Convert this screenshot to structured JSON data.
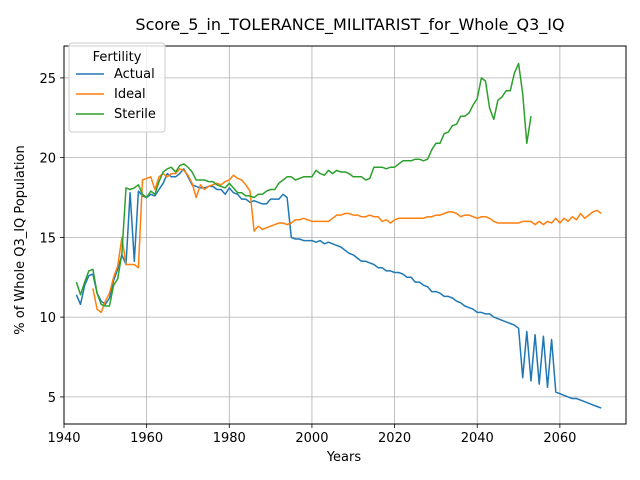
{
  "chart_data": {
    "type": "line",
    "title": "Score_5_in_TOLERANCE_MILITARIST_for_Whole_Q3_IQ",
    "xlabel": "Years",
    "ylabel": "% of Whole Q3_IQ Population",
    "xlim": [
      1940,
      2076
    ],
    "ylim": [
      3.3,
      27
    ],
    "xticks": [
      1940,
      1960,
      1980,
      2000,
      2020,
      2040,
      2060
    ],
    "yticks": [
      5,
      10,
      15,
      20,
      25
    ],
    "grid": true,
    "legend": {
      "title": "Fertility",
      "placement": "top-left"
    },
    "series": [
      {
        "name": "Actual",
        "color": "#1f77b4",
        "x": [
          1943,
          1944,
          1945,
          1946,
          1947,
          1948,
          1949,
          1950,
          1951,
          1952,
          1953,
          1954,
          1955,
          1956,
          1957,
          1958,
          1959,
          1960,
          1961,
          1962,
          1963,
          1964,
          1965,
          1966,
          1967,
          1968,
          1969,
          1970,
          1971,
          1972,
          1973,
          1974,
          1975,
          1976,
          1977,
          1978,
          1979,
          1980,
          1981,
          1982,
          1983,
          1984,
          1985,
          1986,
          1987,
          1988,
          1989,
          1990,
          1991,
          1992,
          1993,
          1994,
          1995,
          1996,
          1997,
          1998,
          1999,
          2000,
          2001,
          2002,
          2003,
          2004,
          2005,
          2006,
          2007,
          2008,
          2009,
          2010,
          2011,
          2012,
          2013,
          2014,
          2015,
          2016,
          2017,
          2018,
          2019,
          2020,
          2021,
          2022,
          2023,
          2024,
          2025,
          2026,
          2027,
          2028,
          2029,
          2030,
          2031,
          2032,
          2033,
          2034,
          2035,
          2036,
          2037,
          2038,
          2039,
          2040,
          2041,
          2042,
          2043,
          2044,
          2045,
          2046,
          2047,
          2048,
          2049,
          2050,
          2051,
          2052,
          2053,
          2054,
          2055,
          2056,
          2057,
          2058,
          2059,
          2060,
          2061,
          2062,
          2063,
          2064,
          2065,
          2066,
          2067,
          2068,
          2069,
          2070
        ],
        "y": [
          11.4,
          10.8,
          12.0,
          12.6,
          12.7,
          11.5,
          11.0,
          10.8,
          11.2,
          12.3,
          13.0,
          13.9,
          13.3,
          17.8,
          13.5,
          17.9,
          17.6,
          17.5,
          17.7,
          17.6,
          18.0,
          18.4,
          19.0,
          18.8,
          18.8,
          19.0,
          19.3,
          18.8,
          18.3,
          18.2,
          18.1,
          18.1,
          18.2,
          18.2,
          18.0,
          18.0,
          17.7,
          18.1,
          17.8,
          17.7,
          17.4,
          17.4,
          17.2,
          17.3,
          17.2,
          17.1,
          17.1,
          17.4,
          17.4,
          17.4,
          17.7,
          17.5,
          15.0,
          14.9,
          14.9,
          14.8,
          14.8,
          14.8,
          14.7,
          14.8,
          14.6,
          14.7,
          14.6,
          14.5,
          14.4,
          14.2,
          14.0,
          13.9,
          13.7,
          13.5,
          13.5,
          13.4,
          13.3,
          13.1,
          13.1,
          12.9,
          12.9,
          12.8,
          12.8,
          12.7,
          12.5,
          12.5,
          12.2,
          12.2,
          12.0,
          11.9,
          11.6,
          11.6,
          11.5,
          11.3,
          11.3,
          11.2,
          11.0,
          10.9,
          10.7,
          10.6,
          10.5,
          10.3,
          10.3,
          10.2,
          10.2,
          10.0,
          9.9,
          9.8,
          9.7,
          9.6,
          9.5,
          9.3,
          6.2,
          9.1,
          6.0,
          8.9,
          5.8,
          8.8,
          5.6,
          8.6,
          5.3,
          5.2,
          5.1,
          5.0,
          4.9,
          4.9,
          4.8,
          4.7,
          4.6,
          4.5,
          4.4,
          4.3
        ]
      },
      {
        "name": "Ideal",
        "color": "#ff7f0e",
        "x": [
          1947,
          1948,
          1949,
          1950,
          1951,
          1952,
          1953,
          1954,
          1955,
          1956,
          1957,
          1958,
          1959,
          1960,
          1961,
          1962,
          1963,
          1964,
          1965,
          1966,
          1967,
          1968,
          1969,
          1970,
          1971,
          1972,
          1973,
          1974,
          1975,
          1976,
          1977,
          1978,
          1979,
          1980,
          1981,
          1982,
          1983,
          1984,
          1985,
          1986,
          1987,
          1988,
          1989,
          1990,
          1991,
          1992,
          1993,
          1994,
          1995,
          1996,
          1997,
          1998,
          1999,
          2000,
          2001,
          2002,
          2003,
          2004,
          2005,
          2006,
          2007,
          2008,
          2009,
          2010,
          2011,
          2012,
          2013,
          2014,
          2015,
          2016,
          2017,
          2018,
          2019,
          2020,
          2021,
          2022,
          2023,
          2024,
          2025,
          2026,
          2027,
          2028,
          2029,
          2030,
          2031,
          2032,
          2033,
          2034,
          2035,
          2036,
          2037,
          2038,
          2039,
          2040,
          2041,
          2042,
          2043,
          2044,
          2045,
          2046,
          2047,
          2048,
          2049,
          2050,
          2051,
          2052,
          2053,
          2054,
          2055,
          2056,
          2057,
          2058,
          2059,
          2060,
          2061,
          2062,
          2063,
          2064,
          2065,
          2066,
          2067,
          2068,
          2069,
          2070
        ],
        "y": [
          11.8,
          10.5,
          10.3,
          11.0,
          11.5,
          12.5,
          13.2,
          15.0,
          13.3,
          13.3,
          13.3,
          13.1,
          18.6,
          18.7,
          18.8,
          18.0,
          18.8,
          19.0,
          18.8,
          19.0,
          19.0,
          19.3,
          19.2,
          18.9,
          18.4,
          17.5,
          18.3,
          18.0,
          18.2,
          18.3,
          18.4,
          18.3,
          18.5,
          18.6,
          18.9,
          18.7,
          18.6,
          18.3,
          17.9,
          15.4,
          15.7,
          15.5,
          15.6,
          15.7,
          15.8,
          15.9,
          15.9,
          15.8,
          15.9,
          16.1,
          16.1,
          16.2,
          16.1,
          16.0,
          16.0,
          16.0,
          16.0,
          16.0,
          16.2,
          16.4,
          16.4,
          16.5,
          16.5,
          16.4,
          16.4,
          16.3,
          16.3,
          16.4,
          16.3,
          16.3,
          16.0,
          16.1,
          15.9,
          16.1,
          16.2,
          16.2,
          16.2,
          16.2,
          16.2,
          16.2,
          16.2,
          16.3,
          16.3,
          16.4,
          16.4,
          16.5,
          16.6,
          16.6,
          16.5,
          16.3,
          16.4,
          16.4,
          16.3,
          16.2,
          16.3,
          16.3,
          16.2,
          16.0,
          15.9,
          15.9,
          15.9,
          15.9,
          15.9,
          15.9,
          16.0,
          16.0,
          16.0,
          15.8,
          16.0,
          15.8,
          16.0,
          15.9,
          16.2,
          15.9,
          16.2,
          16.0,
          16.3,
          16.1,
          16.5,
          16.2,
          16.4,
          16.6,
          16.7,
          16.5
        ]
      },
      {
        "name": "Sterile",
        "color": "#2ca02c",
        "x": [
          1943,
          1944,
          1945,
          1946,
          1947,
          1948,
          1949,
          1950,
          1951,
          1952,
          1953,
          1954,
          1955,
          1956,
          1957,
          1958,
          1959,
          1960,
          1961,
          1962,
          1963,
          1964,
          1965,
          1966,
          1967,
          1968,
          1969,
          1970,
          1971,
          1972,
          1973,
          1974,
          1975,
          1976,
          1977,
          1978,
          1979,
          1980,
          1981,
          1982,
          1983,
          1984,
          1985,
          1986,
          1987,
          1988,
          1989,
          1990,
          1991,
          1992,
          1993,
          1994,
          1995,
          1996,
          1997,
          1998,
          1999,
          2000,
          2001,
          2002,
          2003,
          2004,
          2005,
          2006,
          2007,
          2008,
          2009,
          2010,
          2011,
          2012,
          2013,
          2014,
          2015,
          2016,
          2017,
          2018,
          2019,
          2020,
          2021,
          2022,
          2023,
          2024,
          2025,
          2026,
          2027,
          2028,
          2029,
          2030,
          2031,
          2032,
          2033,
          2034,
          2035,
          2036,
          2037,
          2038,
          2039,
          2040,
          2041,
          2042,
          2043,
          2044,
          2045,
          2046,
          2047,
          2048,
          2049,
          2050,
          2051,
          2052,
          2053,
          2054
        ],
        "y": [
          12.2,
          11.4,
          12.2,
          12.9,
          13.0,
          11.5,
          10.8,
          10.7,
          10.7,
          12.0,
          12.4,
          14.0,
          18.1,
          18.0,
          18.1,
          18.3,
          17.7,
          17.5,
          17.9,
          17.7,
          18.5,
          19.1,
          19.3,
          19.4,
          19.1,
          19.5,
          19.6,
          19.4,
          19.1,
          18.6,
          18.6,
          18.6,
          18.5,
          18.5,
          18.3,
          18.2,
          18.1,
          18.4,
          18.1,
          17.8,
          17.8,
          17.6,
          17.6,
          17.5,
          17.7,
          17.7,
          17.9,
          18.0,
          18.0,
          18.4,
          18.6,
          18.8,
          18.8,
          18.6,
          18.7,
          18.8,
          18.8,
          18.8,
          19.2,
          19.0,
          18.9,
          19.2,
          19.0,
          19.2,
          19.1,
          19.1,
          19.0,
          18.8,
          18.8,
          18.8,
          18.6,
          18.7,
          19.4,
          19.4,
          19.4,
          19.3,
          19.4,
          19.4,
          19.6,
          19.8,
          19.8,
          19.8,
          19.9,
          19.9,
          19.8,
          19.9,
          20.5,
          20.9,
          20.9,
          21.5,
          21.6,
          22.0,
          22.1,
          22.6,
          22.6,
          22.8,
          23.3,
          23.7,
          25.0,
          24.8,
          23.1,
          22.4,
          23.6,
          23.8,
          24.2,
          24.2,
          25.3,
          25.9,
          24.0,
          20.9,
          22.6,
          null
        ]
      }
    ]
  }
}
